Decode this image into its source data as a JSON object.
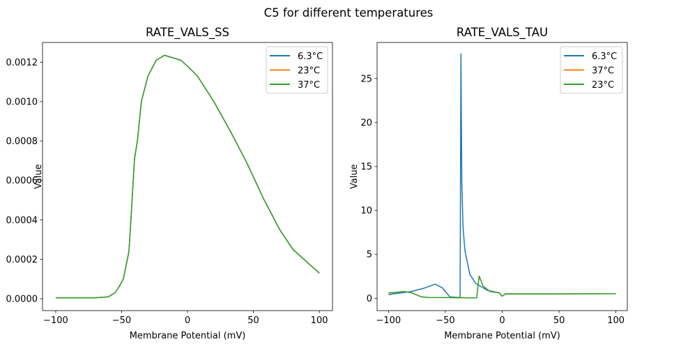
{
  "figure_title": "C5 for different temperatures",
  "chart_data": [
    {
      "type": "line",
      "title": "RATE_VALS_SS",
      "xlabel": "Membrane Potential (mV)",
      "ylabel": "Value",
      "xlim": [
        -110,
        110
      ],
      "ylim": [
        -6e-05,
        0.0013
      ],
      "xticks": [
        -100,
        -50,
        0,
        50,
        100
      ],
      "xtick_labels": [
        "−100",
        "−50",
        "0",
        "50",
        "100"
      ],
      "yticks": [
        0,
        0.0002,
        0.0004,
        0.0006,
        0.0008,
        0.001,
        0.0012
      ],
      "ytick_labels": [
        "0.0000",
        "0.0002",
        "0.0004",
        "0.0006",
        "0.0008",
        "0.0010",
        "0.0012"
      ],
      "grid": false,
      "legend_position": "upper-right",
      "series": [
        {
          "name": "6.3°C",
          "color": "#1f77b4",
          "x": [
            -100,
            -70,
            -60,
            -55,
            -52,
            -48.7,
            -44.4,
            -42.3,
            -40.2,
            -38,
            -35,
            -30,
            -23.7,
            -17.5,
            -10,
            -5,
            0,
            7.5,
            20,
            32.5,
            45,
            57.5,
            70,
            80,
            100
          ],
          "y": [
            5e-06,
            5e-06,
            1e-05,
            3e-05,
            6e-05,
            0.0001,
            0.00024,
            0.00047,
            0.00071,
            0.0008,
            0.001,
            0.00113,
            0.00121,
            0.001235,
            0.00122,
            0.00121,
            0.00118,
            0.00113,
            0.001,
            0.00085,
            0.00069,
            0.00051,
            0.00035,
            0.00025,
            0.00013
          ]
        },
        {
          "name": "23°C",
          "color": "#ff7f0e",
          "x": [
            -100,
            -70,
            -60,
            -55,
            -52,
            -48.7,
            -44.4,
            -42.3,
            -40.2,
            -38,
            -35,
            -30,
            -23.7,
            -17.5,
            -10,
            -5,
            0,
            7.5,
            20,
            32.5,
            45,
            57.5,
            70,
            80,
            100
          ],
          "y": [
            5e-06,
            5e-06,
            1e-05,
            3e-05,
            6e-05,
            0.0001,
            0.00024,
            0.00047,
            0.00071,
            0.0008,
            0.001,
            0.00113,
            0.00121,
            0.001235,
            0.00122,
            0.00121,
            0.00118,
            0.00113,
            0.001,
            0.00085,
            0.00069,
            0.00051,
            0.00035,
            0.00025,
            0.00013
          ]
        },
        {
          "name": "37°C",
          "color": "#2ca02c",
          "x": [
            -100,
            -70,
            -60,
            -55,
            -52,
            -48.7,
            -44.4,
            -42.3,
            -40.2,
            -38,
            -35,
            -30,
            -23.7,
            -17.5,
            -10,
            -5,
            0,
            7.5,
            20,
            32.5,
            45,
            57.5,
            70,
            80,
            100
          ],
          "y": [
            5e-06,
            5e-06,
            1e-05,
            3e-05,
            6e-05,
            0.0001,
            0.00024,
            0.00047,
            0.00071,
            0.0008,
            0.001,
            0.00113,
            0.00121,
            0.001235,
            0.00122,
            0.00121,
            0.00118,
            0.00113,
            0.001,
            0.00085,
            0.00069,
            0.00051,
            0.00035,
            0.00025,
            0.00013
          ]
        }
      ]
    },
    {
      "type": "line",
      "title": "RATE_VALS_TAU",
      "xlabel": "Membrane Potential (mV)",
      "ylabel": "Value",
      "xlim": [
        -110,
        110
      ],
      "ylim": [
        -1.4,
        29.1
      ],
      "xticks": [
        -100,
        -50,
        0,
        50,
        100
      ],
      "xtick_labels": [
        "−100",
        "−50",
        "0",
        "50",
        "100"
      ],
      "yticks": [
        0,
        5,
        10,
        15,
        20,
        25
      ],
      "ytick_labels": [
        "0",
        "5",
        "10",
        "15",
        "20",
        "25"
      ],
      "grid": false,
      "legend_position": "upper-right",
      "series": [
        {
          "name": "6.3°C",
          "color": "#1f77b4",
          "x": [
            -100,
            -80,
            -70,
            -58.75,
            -52.5,
            -46,
            -38,
            -37,
            -36.25,
            -35.5,
            -34.4,
            -32.7,
            -28.5,
            -23.3,
            -12.9,
            -2.5,
            0,
            2.7,
            100
          ],
          "y": [
            0.42,
            0.77,
            1.1,
            1.6,
            1.18,
            0.16,
            0.1,
            0.1,
            27.8,
            13,
            8.0,
            5.4,
            2.74,
            1.69,
            0.9,
            0.63,
            0.24,
            0.5,
            0.52
          ]
        },
        {
          "name": "37°C",
          "color": "#ff7f0e",
          "x": [
            -100,
            -85.8,
            -79.6,
            -71,
            -65,
            -22.5,
            -20.2,
            -17,
            -10.8,
            -2.5,
            0,
            2.7,
            100
          ],
          "y": [
            0.6,
            0.77,
            0.63,
            0.16,
            0.1,
            0.05,
            2.53,
            1.42,
            0.77,
            0.63,
            0.24,
            0.5,
            0.52
          ]
        },
        {
          "name": "23°C",
          "color": "#2ca02c",
          "x": [
            -100,
            -85.8,
            -79.6,
            -71,
            -65,
            -22.5,
            -20.2,
            -17,
            -10.8,
            -2.5,
            0,
            2.7,
            100
          ],
          "y": [
            0.6,
            0.77,
            0.63,
            0.16,
            0.1,
            0.05,
            2.53,
            1.42,
            0.77,
            0.63,
            0.24,
            0.5,
            0.52
          ]
        }
      ]
    }
  ]
}
